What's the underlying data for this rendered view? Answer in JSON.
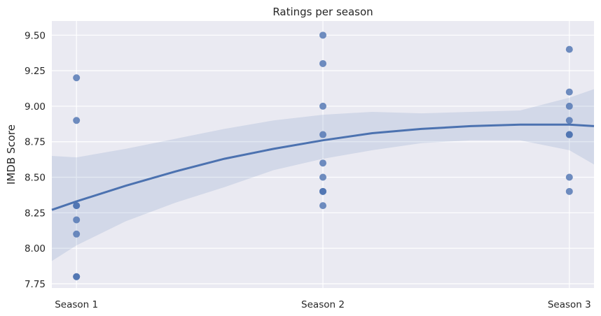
{
  "chart_data": {
    "type": "scatter",
    "title": "Ratings per season",
    "xlabel": "",
    "ylabel": "IMDB Score",
    "categories": [
      "Season 1",
      "Season 2",
      "Season 3"
    ],
    "y_ticks": [
      "7.75",
      "8.00",
      "8.25",
      "8.50",
      "8.75",
      "9.00",
      "9.25",
      "9.50"
    ],
    "ylim": [
      7.72,
      9.6
    ],
    "xlim": [
      0.9,
      3.1
    ],
    "grid": true,
    "points": [
      {
        "x": 1,
        "y": 9.2
      },
      {
        "x": 1,
        "y": 8.9
      },
      {
        "x": 1,
        "y": 8.3
      },
      {
        "x": 1,
        "y": 8.3
      },
      {
        "x": 1,
        "y": 8.2
      },
      {
        "x": 1,
        "y": 8.1
      },
      {
        "x": 1,
        "y": 7.8
      },
      {
        "x": 1,
        "y": 7.8
      },
      {
        "x": 2,
        "y": 9.5
      },
      {
        "x": 2,
        "y": 9.3
      },
      {
        "x": 2,
        "y": 9.0
      },
      {
        "x": 2,
        "y": 8.8
      },
      {
        "x": 2,
        "y": 8.6
      },
      {
        "x": 2,
        "y": 8.5
      },
      {
        "x": 2,
        "y": 8.4
      },
      {
        "x": 2,
        "y": 8.4
      },
      {
        "x": 2,
        "y": 8.3
      },
      {
        "x": 3,
        "y": 9.4
      },
      {
        "x": 3,
        "y": 9.1
      },
      {
        "x": 3,
        "y": 9.0
      },
      {
        "x": 3,
        "y": 8.9
      },
      {
        "x": 3,
        "y": 8.8
      },
      {
        "x": 3,
        "y": 8.8
      },
      {
        "x": 3,
        "y": 8.5
      },
      {
        "x": 3,
        "y": 8.4
      }
    ],
    "trend": {
      "kind": "quadratic",
      "x": [
        0.9,
        1.0,
        1.2,
        1.4,
        1.6,
        1.8,
        2.0,
        2.2,
        2.4,
        2.6,
        2.8,
        3.0,
        3.1
      ],
      "y": [
        8.27,
        8.33,
        8.44,
        8.54,
        8.63,
        8.7,
        8.76,
        8.81,
        8.84,
        8.86,
        8.87,
        8.87,
        8.86
      ],
      "ci_lower": [
        7.91,
        8.02,
        8.19,
        8.32,
        8.43,
        8.55,
        8.63,
        8.69,
        8.74,
        8.76,
        8.76,
        8.69,
        8.59
      ],
      "ci_upper": [
        8.65,
        8.64,
        8.7,
        8.77,
        8.84,
        8.9,
        8.94,
        8.96,
        8.95,
        8.96,
        8.97,
        9.06,
        9.12
      ]
    },
    "colors": {
      "background": "#eaeaf2",
      "grid": "#ffffff",
      "point": "#4c72b0",
      "line": "#4c72b0",
      "band": "#4c72b0"
    }
  }
}
